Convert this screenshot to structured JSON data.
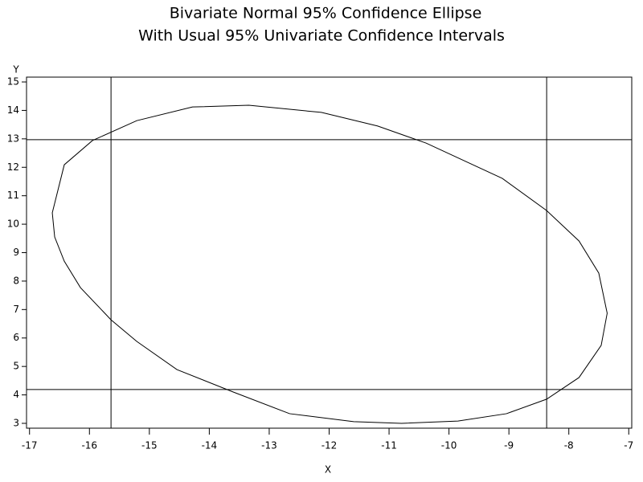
{
  "chart_data": {
    "type": "line",
    "title": "Bivariate Normal 95% Confidence Ellipse",
    "subtitle": "With Usual 95% Univariate Confidence Intervals",
    "x_label": "X",
    "y_label": "Y",
    "x": [
      -16.62,
      -16.42,
      -15.95,
      -15.21,
      -14.28,
      -13.34,
      -12.13,
      -11.19,
      -10.38,
      -9.11,
      -8.37,
      -7.83,
      -7.5,
      -7.36,
      -7.46,
      -7.83,
      -8.37,
      -9.04,
      -9.85,
      -10.79,
      -11.59,
      -12.66,
      -13.6,
      -14.54,
      -15.21,
      -15.64,
      -16.15,
      -16.42,
      -16.58
    ],
    "values": [
      10.4,
      12.09,
      12.94,
      13.64,
      14.12,
      14.18,
      13.93,
      13.45,
      12.85,
      11.61,
      10.48,
      9.41,
      8.28,
      6.87,
      5.74,
      4.61,
      3.85,
      3.34,
      3.08,
      3.0,
      3.06,
      3.34,
      4.1,
      4.89,
      5.88,
      6.64,
      7.77,
      8.7,
      9.55
    ],
    "color": "#000000",
    "closed": true,
    "vlines": [
      -15.64,
      -8.37
    ],
    "hlines": [
      12.97,
      4.19
    ],
    "xlim": [
      -17.05,
      -6.95
    ],
    "ylim": [
      2.83,
      15.17
    ],
    "xticks": [
      -17,
      -16,
      -15,
      -14,
      -13,
      -12,
      -11,
      -10,
      -9,
      -8,
      -7
    ],
    "yticks": [
      3,
      4,
      5,
      6,
      7,
      8,
      9,
      10,
      11,
      12,
      13,
      14,
      15
    ]
  }
}
